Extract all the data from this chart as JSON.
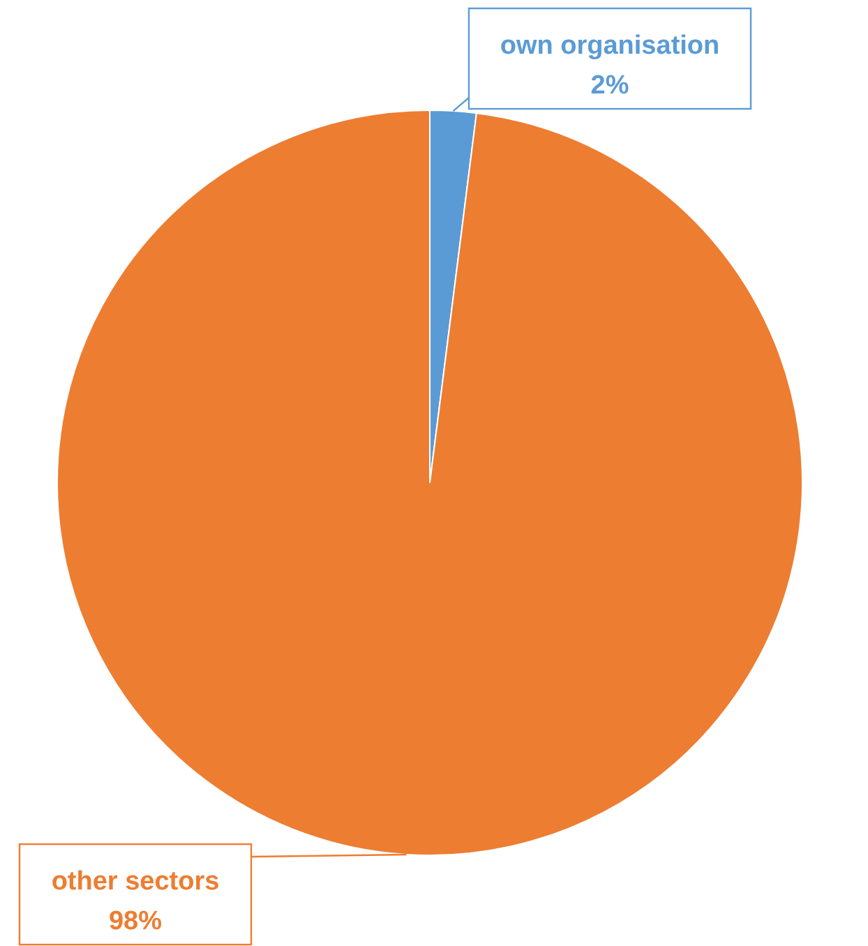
{
  "chart_data": {
    "type": "pie",
    "categories": [
      "own organisation",
      "other sectors"
    ],
    "values": [
      2,
      98
    ],
    "colors": [
      "#5b9bd5",
      "#ed7d31"
    ],
    "value_labels": [
      "2%",
      "98%"
    ]
  }
}
